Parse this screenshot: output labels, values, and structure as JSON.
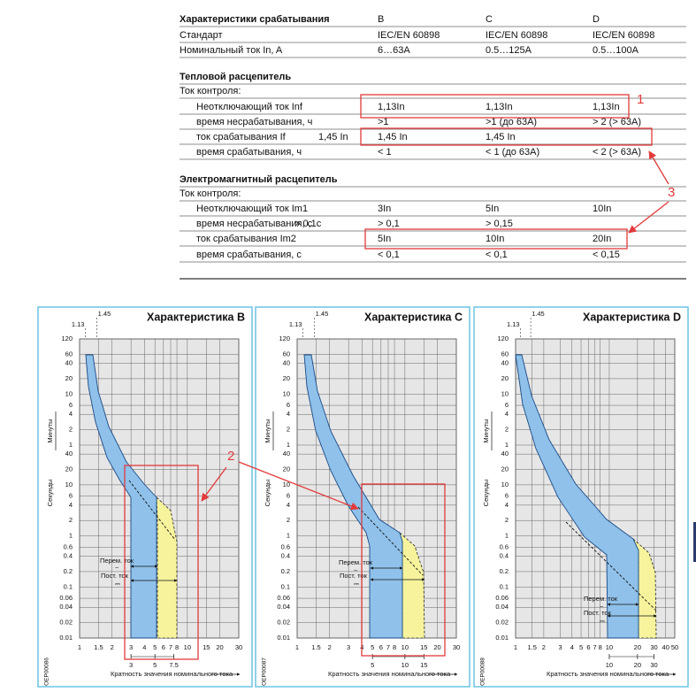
{
  "table": {
    "header": {
      "label": "Характеристики срабатывания",
      "columns": [
        "B",
        "C",
        "D"
      ]
    },
    "general": [
      {
        "label": "Стандарт",
        "values": [
          "IEC/EN 60898",
          "IEC/EN 60898",
          "IEC/EN 60898"
        ]
      },
      {
        "label": "Номинальный ток In, A",
        "values": [
          "6…63A",
          "0.5…125A",
          "0.5…100A"
        ]
      }
    ],
    "thermal": {
      "title": "Тепловой расцепитель",
      "intro": "Ток контроля:",
      "rows": [
        {
          "label": "Неотключающий ток  Inf",
          "values": [
            "1,13In",
            "1,13In",
            "1,13In"
          ]
        },
        {
          "label": "время несрабатывания, ч",
          "values": [
            ">1",
            ">1 (до 63A)",
            "> 2 (> 63A)"
          ]
        },
        {
          "label": "ток срабатывания If",
          "note": "1,45 In",
          "values": [
            "1,45 In",
            "1,45 In",
            null
          ]
        },
        {
          "label": "время срабатывания, ч",
          "values": [
            "< 1",
            "< 1 (до 63A)",
            "< 2 (> 63A)"
          ]
        }
      ]
    },
    "magnetic": {
      "title": "Электромагнитный расцепитель",
      "intro": "Ток контроля:",
      "rows": [
        {
          "label": "Неотключающий ток Im1",
          "values": [
            "3In",
            "5In",
            "10In"
          ]
        },
        {
          "label": "время несрабатывания, с",
          "note": "> 0,1с",
          "values": [
            "> 0,1",
            "> 0,15",
            null
          ]
        },
        {
          "label": "ток срабатывания Im2",
          "values": [
            "5In",
            "10In",
            "20In"
          ]
        },
        {
          "label": "время срабатывания, с",
          "values": [
            "< 0,1",
            "< 0,1",
            "< 0,15"
          ]
        }
      ]
    }
  },
  "callouts": [
    "1",
    "2",
    "3"
  ],
  "shared": {
    "minutes_label": "Минуты",
    "seconds_label": "Секунды",
    "minute_ticks": [
      120,
      60,
      40,
      20,
      10,
      6,
      4,
      2,
      1
    ],
    "second_ticks": [
      40,
      20,
      10,
      6,
      4,
      2,
      1,
      0.6,
      0.4,
      0.2,
      0.1,
      0.06,
      0.04,
      0.02,
      0.01
    ],
    "ylim_seconds": [
      0.01,
      7200
    ],
    "log_scale": true,
    "marker_ticks": [
      1.13,
      1.45
    ],
    "x_title": "Кратность значения номинального тока",
    "ac_label": "Перем. ток",
    "ac_symbol": "~",
    "dc_label": "Пост. ток",
    "dc_symbol": "⎓"
  },
  "charts": [
    {
      "title": "Характеристика B",
      "code": "OEP00086",
      "xlim": [
        1,
        30
      ],
      "xticks": [
        1,
        1.5,
        2,
        3,
        4,
        5,
        6,
        7,
        8,
        10,
        15,
        20,
        30
      ],
      "current_ticks": [
        3,
        5,
        7.5
      ]
    },
    {
      "title": "Характеристика C",
      "code": "OEP00087",
      "xlim": [
        1,
        30
      ],
      "xticks": [
        1,
        1.5,
        2,
        3,
        4,
        5,
        6,
        7,
        8,
        10,
        15,
        20,
        30
      ],
      "current_ticks": [
        5,
        10,
        15
      ]
    },
    {
      "title": "Характеристика D",
      "code": "OEP00088",
      "xlim": [
        1,
        50
      ],
      "xticks": [
        1,
        1.5,
        2,
        3,
        4,
        5,
        6,
        7,
        8,
        10,
        20,
        30,
        40,
        50
      ],
      "current_ticks": [
        10,
        20,
        30
      ]
    }
  ]
}
